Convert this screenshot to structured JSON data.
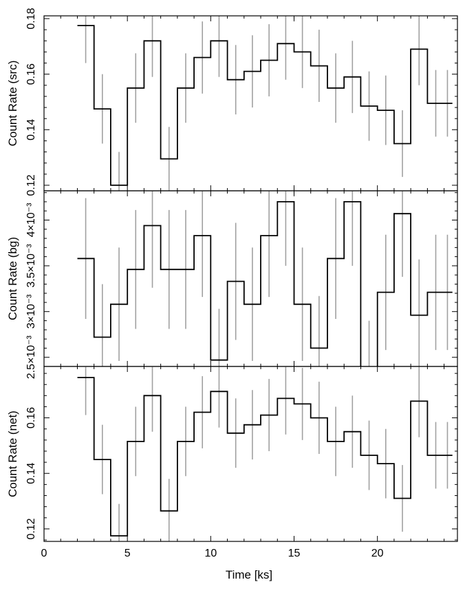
{
  "chart_data": [
    {
      "type": "line",
      "ylabel": "Count Rate (src)",
      "xlim": [
        0,
        24.8
      ],
      "ylim": [
        0.118,
        0.181
      ],
      "yticks": [
        0.12,
        0.14,
        0.16,
        0.18
      ],
      "yticklabels": [
        "0.12",
        "0.14",
        "0.16",
        "0.18"
      ],
      "x_edges": [
        2.0,
        3.0,
        4.0,
        5.0,
        6.0,
        7.0,
        8.0,
        9.0,
        10.0,
        11.0,
        12.0,
        13.0,
        14.0,
        15.0,
        16.0,
        17.0,
        18.0,
        19.0,
        20.0,
        21.0,
        22.0,
        23.0,
        24.0,
        24.5
      ],
      "x_centers": [
        2.5,
        3.5,
        4.5,
        5.5,
        6.5,
        7.5,
        8.5,
        9.5,
        10.5,
        11.5,
        12.5,
        13.5,
        14.5,
        15.5,
        16.5,
        17.5,
        18.5,
        19.5,
        20.5,
        21.5,
        22.5,
        23.5,
        24.2
      ],
      "values": [
        0.1775,
        0.1475,
        0.12,
        0.155,
        0.172,
        0.1295,
        0.155,
        0.166,
        0.172,
        0.158,
        0.161,
        0.165,
        0.171,
        0.168,
        0.163,
        0.155,
        0.159,
        0.1485,
        0.147,
        0.135,
        0.169,
        0.1495,
        0.1495
      ],
      "errors": [
        0.0135,
        0.0125,
        0.012,
        0.0125,
        0.013,
        0.0115,
        0.0125,
        0.013,
        0.013,
        0.0125,
        0.013,
        0.013,
        0.013,
        0.013,
        0.013,
        0.0125,
        0.013,
        0.0125,
        0.0125,
        0.012,
        0.013,
        0.012,
        0.012
      ]
    },
    {
      "type": "line",
      "ylabel": "Count Rate (bg)",
      "xlim": [
        0,
        24.8
      ],
      "ylim": [
        0.0024,
        0.00432
      ],
      "yticks": [
        0.0025,
        0.003,
        0.0035,
        0.004
      ],
      "yticklabels": [
        "2.5×10⁻³",
        "3×10⁻³",
        "3.5×10⁻³",
        "4×10⁻³"
      ],
      "x_edges": [
        2.0,
        3.0,
        4.0,
        5.0,
        6.0,
        7.0,
        8.0,
        9.0,
        10.0,
        11.0,
        12.0,
        13.0,
        14.0,
        15.0,
        16.0,
        17.0,
        18.0,
        19.0,
        20.0,
        21.0,
        22.0,
        23.0,
        24.0,
        24.5
      ],
      "x_centers": [
        2.5,
        3.5,
        4.5,
        5.5,
        6.5,
        7.5,
        8.5,
        9.5,
        10.5,
        11.5,
        12.5,
        13.5,
        14.5,
        15.5,
        16.5,
        17.5,
        18.5,
        19.5,
        20.5,
        21.5,
        22.5,
        23.5,
        24.2
      ],
      "values": [
        0.00358,
        0.00272,
        0.00308,
        0.00346,
        0.00394,
        0.00346,
        0.00346,
        0.00383,
        0.00247,
        0.00333,
        0.00308,
        0.00383,
        0.0042,
        0.00308,
        0.0026,
        0.00358,
        0.0042,
        0.00235,
        0.00321,
        0.00407,
        0.00296,
        0.00321,
        0.00321
      ],
      "errors": [
        0.00066,
        0.00058,
        0.00062,
        0.00065,
        0.00068,
        0.00065,
        0.00065,
        0.00067,
        0.00056,
        0.00064,
        0.00062,
        0.00067,
        0.0007,
        0.00062,
        0.00057,
        0.00066,
        0.0007,
        0.00055,
        0.00063,
        0.00069,
        0.00061,
        0.00063,
        0.00063
      ]
    },
    {
      "type": "line",
      "ylabel": "Count Rate (net)",
      "xlabel": "Time [ks]",
      "xlim": [
        0,
        24.8
      ],
      "ylim": [
        0.1155,
        0.1785
      ],
      "yticks": [
        0.12,
        0.14,
        0.16
      ],
      "yticklabels": [
        "0.12",
        "0.14",
        "0.16"
      ],
      "xticks": [
        0,
        5,
        10,
        15,
        20
      ],
      "xticklabels": [
        "0",
        "5",
        "10",
        "15",
        "20"
      ],
      "x_edges": [
        2.0,
        3.0,
        4.0,
        5.0,
        6.0,
        7.0,
        8.0,
        9.0,
        10.0,
        11.0,
        12.0,
        13.0,
        14.0,
        15.0,
        16.0,
        17.0,
        18.0,
        19.0,
        20.0,
        21.0,
        22.0,
        23.0,
        24.0,
        24.5
      ],
      "x_centers": [
        2.5,
        3.5,
        4.5,
        5.5,
        6.5,
        7.5,
        8.5,
        9.5,
        10.5,
        11.5,
        12.5,
        13.5,
        14.5,
        15.5,
        16.5,
        17.5,
        18.5,
        19.5,
        20.5,
        21.5,
        22.5,
        23.5,
        24.2
      ],
      "values": [
        0.1745,
        0.145,
        0.1175,
        0.1515,
        0.168,
        0.1265,
        0.1515,
        0.162,
        0.1695,
        0.1545,
        0.1575,
        0.161,
        0.167,
        0.165,
        0.16,
        0.1515,
        0.155,
        0.1465,
        0.1435,
        0.131,
        0.166,
        0.1465,
        0.1465
      ],
      "errors": [
        0.0135,
        0.0125,
        0.0115,
        0.0125,
        0.013,
        0.0115,
        0.0125,
        0.013,
        0.013,
        0.0125,
        0.0125,
        0.013,
        0.013,
        0.013,
        0.013,
        0.0125,
        0.013,
        0.0125,
        0.0125,
        0.012,
        0.013,
        0.012,
        0.012
      ]
    }
  ],
  "colors": {
    "step_line": "#000000",
    "error_bar": "#a0a0a0",
    "frame": "#000000",
    "background": "#ffffff"
  }
}
